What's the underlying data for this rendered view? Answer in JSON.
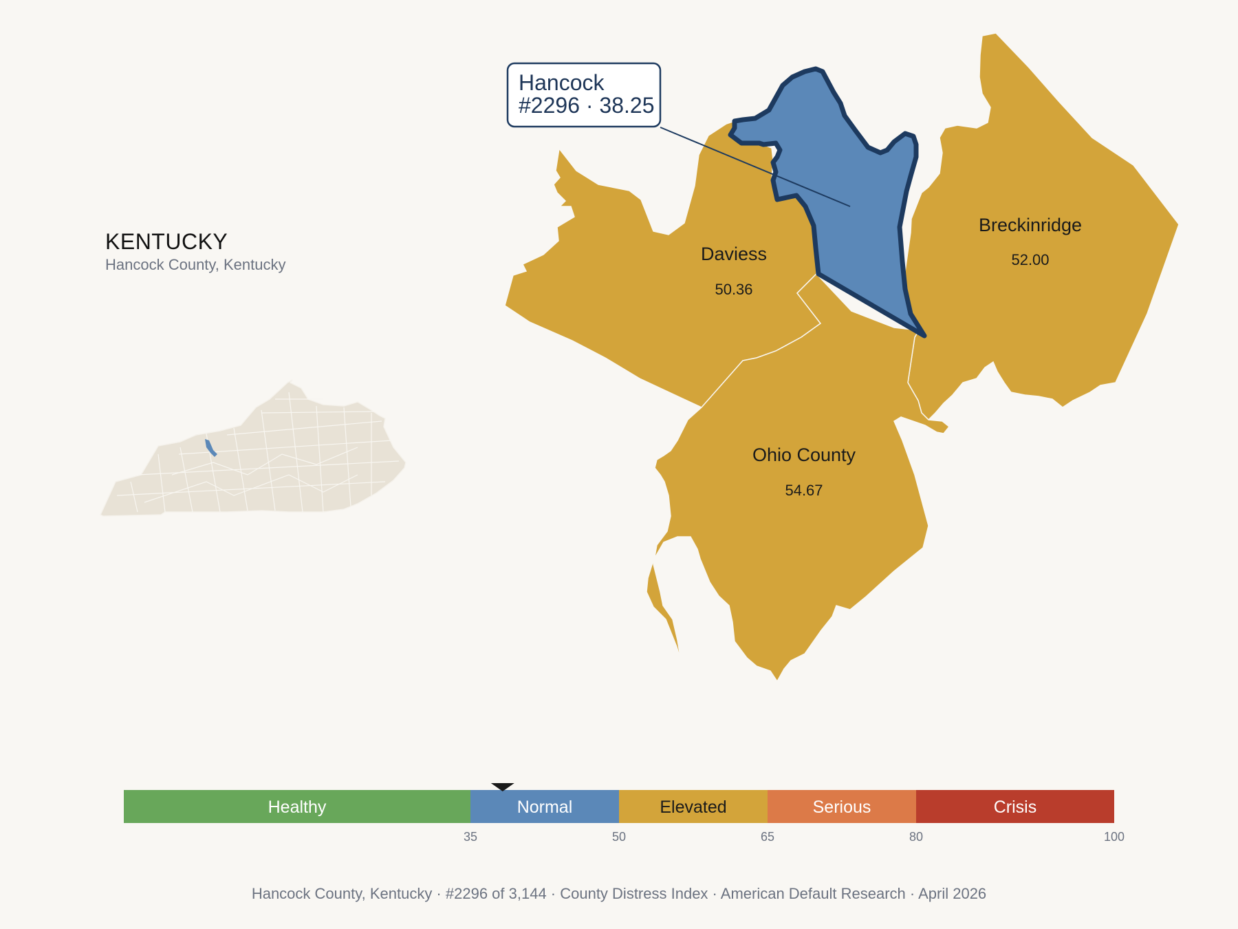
{
  "state_panel": {
    "title": "KENTUCKY",
    "subtitle": "Hancock County, Kentucky"
  },
  "counties": [
    {
      "key": "hancock",
      "name": "Hancock",
      "value": "38.25",
      "color": "#5b88b8",
      "highlighted": true
    },
    {
      "key": "daviess",
      "name": "Daviess",
      "value": "50.36",
      "color": "#d3a43a"
    },
    {
      "key": "breckinridge",
      "name": "Breckinridge",
      "value": "52.00",
      "color": "#d3a43a"
    },
    {
      "key": "ohio",
      "name": "Ohio County",
      "value": "54.67",
      "color": "#d3a43a"
    }
  ],
  "callout": {
    "line1": "Hancock",
    "line2": "#2296 · 38.25"
  },
  "legend": {
    "marker_value": 38.25,
    "bands": [
      {
        "label": "Healthy",
        "from": 0,
        "to": 35,
        "color": "#68a75a",
        "text_color": "#ffffff"
      },
      {
        "label": "Normal",
        "from": 35,
        "to": 50,
        "color": "#5b88b8",
        "text_color": "#ffffff"
      },
      {
        "label": "Elevated",
        "from": 50,
        "to": 65,
        "color": "#d3a43a",
        "text_color": "#1a1a1a"
      },
      {
        "label": "Serious",
        "from": 65,
        "to": 80,
        "color": "#dc7a48",
        "text_color": "#ffffff"
      },
      {
        "label": "Crisis",
        "from": 80,
        "to": 100,
        "color": "#b93d2c",
        "text_color": "#ffffff"
      }
    ],
    "ticks": [
      "35",
      "50",
      "65",
      "80",
      "100"
    ]
  },
  "footer": {
    "parts": [
      "Hancock County, Kentucky",
      "#2296 of 3,144",
      "County Distress Index",
      "American Default Research",
      "April 2026"
    ],
    "separator": "·"
  },
  "colors": {
    "background": "#f9f7f3",
    "state_fill": "#e8e2d6",
    "highlight_border": "#1d3a5f"
  }
}
